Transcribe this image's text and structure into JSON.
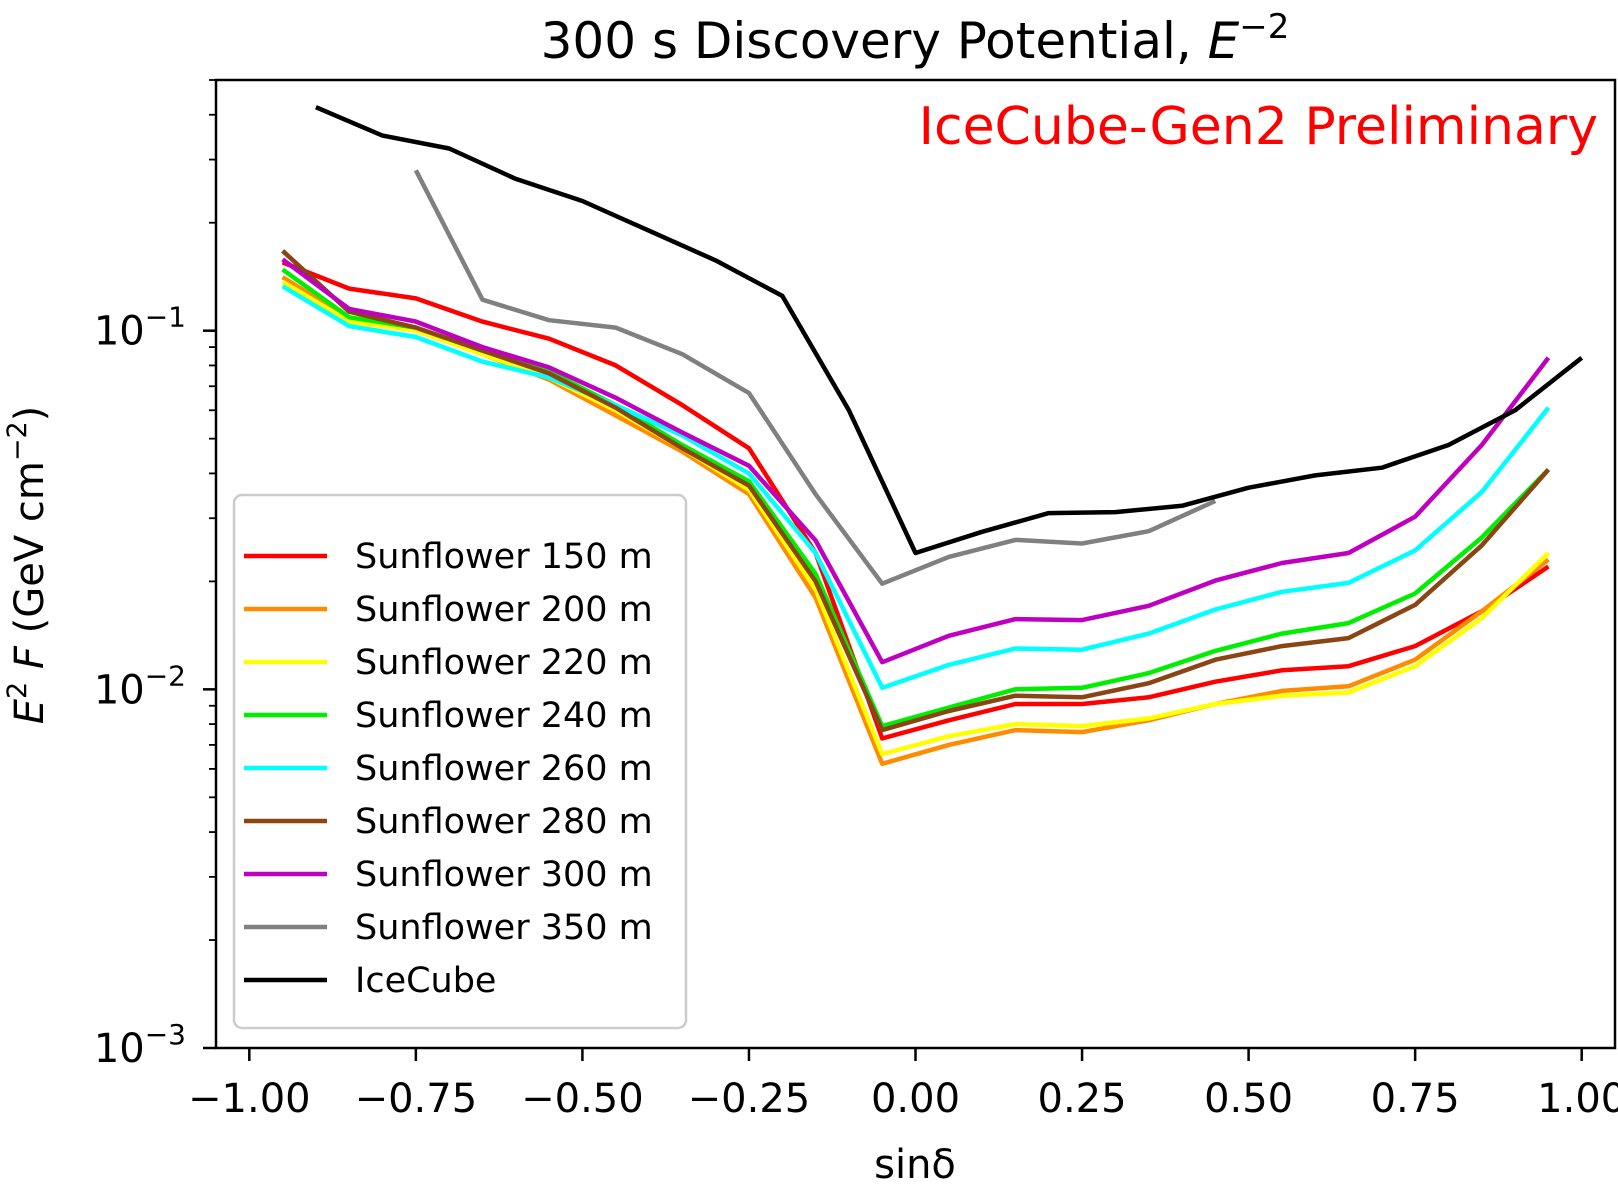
{
  "chart_data": {
    "type": "line",
    "title_main": "300 s Discovery Potential, ",
    "title_e": "E",
    "title_exp": "−2",
    "xlabel": "sinδ",
    "ylabel_e": "E",
    "ylabel_sup": "2",
    "ylabel_f": " F ",
    "ylabel_unit": "(GeV cm",
    "ylabel_unit_exp": "−2",
    "ylabel_close": ")",
    "annotation": "IceCube-Gen2 Preliminary",
    "annotation_color": "#ff0000",
    "xlim": [
      -1.05,
      1.05
    ],
    "ylim": [
      0.001,
      0.5
    ],
    "yscale": "log",
    "x_ticks": [
      {
        "value": -1.0,
        "label": "−1.00"
      },
      {
        "value": -0.75,
        "label": "−0.75"
      },
      {
        "value": -0.5,
        "label": "−0.50"
      },
      {
        "value": -0.25,
        "label": "−0.25"
      },
      {
        "value": 0.0,
        "label": "0.00"
      },
      {
        "value": 0.25,
        "label": "0.25"
      },
      {
        "value": 0.5,
        "label": "0.50"
      },
      {
        "value": 0.75,
        "label": "0.75"
      },
      {
        "value": 1.0,
        "label": "1.00"
      }
    ],
    "y_ticks": [
      {
        "value": 0.001,
        "base": "10",
        "exp": "−3"
      },
      {
        "value": 0.01,
        "base": "10",
        "exp": "−2"
      },
      {
        "value": 0.1,
        "base": "10",
        "exp": "−1"
      }
    ],
    "legend_position": "lower-left",
    "series": [
      {
        "name": "Sunflower 150 m",
        "color": "#ff0000",
        "x": [
          -0.95,
          -0.85,
          -0.75,
          -0.65,
          -0.55,
          -0.45,
          -0.35,
          -0.25,
          -0.15,
          -0.05,
          0.05,
          0.15,
          0.25,
          0.35,
          0.45,
          0.55,
          0.65,
          0.75,
          0.85,
          0.95
        ],
        "y": [
          0.155,
          0.131,
          0.123,
          0.106,
          0.095,
          0.08,
          0.062,
          0.047,
          0.024,
          0.0073,
          0.0082,
          0.0091,
          0.0091,
          0.0095,
          0.0105,
          0.0113,
          0.0116,
          0.0132,
          0.0165,
          0.022
        ]
      },
      {
        "name": "Sunflower 200 m",
        "color": "#ff8c00",
        "x": [
          -0.95,
          -0.85,
          -0.75,
          -0.65,
          -0.55,
          -0.45,
          -0.35,
          -0.25,
          -0.15,
          -0.05,
          0.05,
          0.15,
          0.25,
          0.35,
          0.45,
          0.55,
          0.65,
          0.75,
          0.85,
          0.95
        ],
        "y": [
          0.141,
          0.108,
          0.102,
          0.086,
          0.073,
          0.058,
          0.046,
          0.035,
          0.018,
          0.0062,
          0.007,
          0.0077,
          0.0076,
          0.0082,
          0.0091,
          0.0099,
          0.0102,
          0.0121,
          0.0165,
          0.023
        ]
      },
      {
        "name": "Sunflower 220 m",
        "color": "#ffff00",
        "x": [
          -0.95,
          -0.85,
          -0.75,
          -0.65,
          -0.55,
          -0.45,
          -0.35,
          -0.25,
          -0.15,
          -0.05,
          0.05,
          0.15,
          0.25,
          0.35,
          0.45,
          0.55,
          0.65,
          0.75,
          0.85,
          0.95
        ],
        "y": [
          0.137,
          0.106,
          0.1,
          0.086,
          0.074,
          0.06,
          0.047,
          0.036,
          0.019,
          0.0066,
          0.0074,
          0.008,
          0.0079,
          0.0083,
          0.0091,
          0.0096,
          0.0098,
          0.0116,
          0.0158,
          0.024
        ]
      },
      {
        "name": "Sunflower 240 m",
        "color": "#00ee00",
        "x": [
          -0.95,
          -0.85,
          -0.75,
          -0.65,
          -0.55,
          -0.45,
          -0.35,
          -0.25,
          -0.15,
          -0.05,
          0.05,
          0.15,
          0.25,
          0.35,
          0.45,
          0.55,
          0.65,
          0.75,
          0.85,
          0.95
        ],
        "y": [
          0.148,
          0.109,
          0.102,
          0.088,
          0.077,
          0.062,
          0.048,
          0.038,
          0.021,
          0.0079,
          0.0089,
          0.01,
          0.0101,
          0.0111,
          0.0128,
          0.0143,
          0.0153,
          0.0185,
          0.0265,
          0.041
        ]
      },
      {
        "name": "Sunflower 260 m",
        "color": "#00ffff",
        "x": [
          -0.95,
          -0.85,
          -0.75,
          -0.65,
          -0.55,
          -0.45,
          -0.35,
          -0.25,
          -0.15,
          -0.05,
          0.05,
          0.15,
          0.25,
          0.35,
          0.45,
          0.55,
          0.65,
          0.75,
          0.85,
          0.95
        ],
        "y": [
          0.133,
          0.103,
          0.096,
          0.082,
          0.074,
          0.062,
          0.051,
          0.04,
          0.024,
          0.0101,
          0.0117,
          0.013,
          0.0129,
          0.0143,
          0.0167,
          0.0187,
          0.0198,
          0.0244,
          0.0355,
          0.061
        ]
      },
      {
        "name": "Sunflower 280 m",
        "color": "#8b4513",
        "x": [
          -0.95,
          -0.85,
          -0.75,
          -0.65,
          -0.55,
          -0.45,
          -0.35,
          -0.25,
          -0.15,
          -0.05,
          0.05,
          0.15,
          0.25,
          0.35,
          0.45,
          0.55,
          0.65,
          0.75,
          0.85,
          0.95
        ],
        "y": [
          0.167,
          0.113,
          0.102,
          0.088,
          0.076,
          0.061,
          0.047,
          0.037,
          0.02,
          0.0077,
          0.0087,
          0.0096,
          0.0095,
          0.0104,
          0.0121,
          0.0132,
          0.0139,
          0.0172,
          0.0252,
          0.041
        ]
      },
      {
        "name": "Sunflower 300 m",
        "color": "#c000c0",
        "x": [
          -0.95,
          -0.85,
          -0.75,
          -0.65,
          -0.55,
          -0.45,
          -0.35,
          -0.25,
          -0.15,
          -0.05,
          0.05,
          0.15,
          0.25,
          0.35,
          0.45,
          0.55,
          0.65,
          0.75,
          0.85,
          0.95
        ],
        "y": [
          0.158,
          0.115,
          0.106,
          0.09,
          0.079,
          0.065,
          0.052,
          0.042,
          0.026,
          0.0119,
          0.0141,
          0.0157,
          0.0156,
          0.0171,
          0.0201,
          0.0225,
          0.024,
          0.0303,
          0.048,
          0.084
        ]
      },
      {
        "name": "Sunflower 350 m",
        "color": "#808080",
        "x": [
          -0.75,
          -0.65,
          -0.55,
          -0.45,
          -0.35,
          -0.25,
          -0.15,
          -0.05,
          0.05,
          0.15,
          0.25,
          0.35,
          0.45
        ],
        "y": [
          0.28,
          0.122,
          0.107,
          0.102,
          0.086,
          0.067,
          0.035,
          0.0197,
          0.0234,
          0.0261,
          0.0255,
          0.0276,
          0.0335
        ]
      },
      {
        "name": "IceCube",
        "color": "#000000",
        "x": [
          -0.9,
          -0.8,
          -0.7,
          -0.6,
          -0.5,
          -0.4,
          -0.3,
          -0.2,
          -0.1,
          0.0,
          0.1,
          0.2,
          0.3,
          0.4,
          0.5,
          0.6,
          0.7,
          0.8,
          0.9,
          1.0
        ],
        "y": [
          0.42,
          0.35,
          0.322,
          0.265,
          0.23,
          0.19,
          0.157,
          0.125,
          0.06,
          0.024,
          0.0275,
          0.031,
          0.0312,
          0.0325,
          0.0365,
          0.0395,
          0.0415,
          0.048,
          0.06,
          0.084
        ]
      }
    ]
  }
}
